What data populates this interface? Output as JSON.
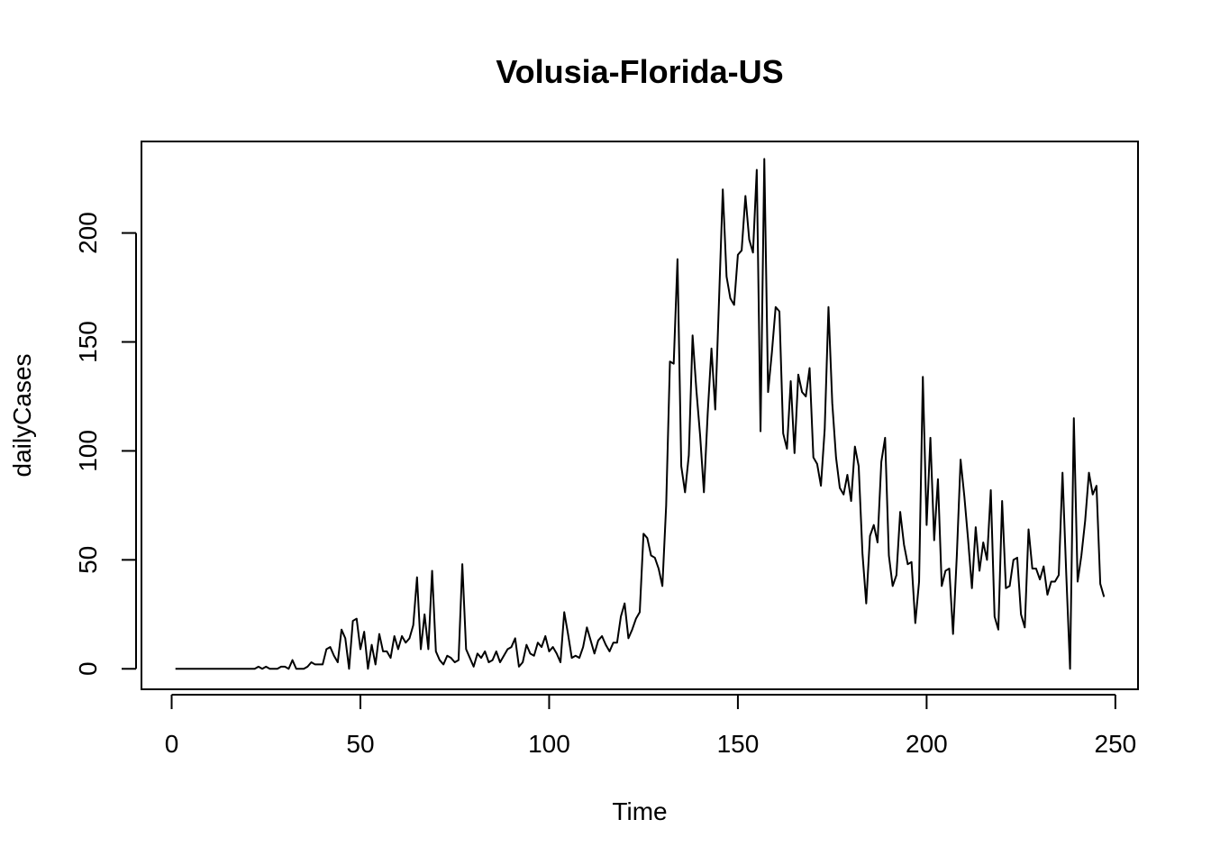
{
  "chart_data": {
    "type": "line",
    "title": "Volusia-Florida-US",
    "xlabel": "Time",
    "ylabel": "dailyCases",
    "xlim": [
      -8,
      256
    ],
    "ylim": [
      -9.4,
      242
    ],
    "x_ticks": [
      0,
      50,
      100,
      150,
      200,
      250
    ],
    "y_ticks": [
      0,
      50,
      100,
      150,
      200
    ],
    "x_tick_labels": [
      "0",
      "50",
      "100",
      "150",
      "200",
      "250"
    ],
    "y_tick_labels": [
      "0",
      "50",
      "100",
      "150",
      "200"
    ],
    "grid": false,
    "legend": "none",
    "line_color": "#000000",
    "series": [
      {
        "x_start": 1,
        "values": [
          0,
          0,
          0,
          0,
          0,
          0,
          0,
          0,
          0,
          0,
          0,
          0,
          0,
          0,
          0,
          0,
          0,
          0,
          0,
          0,
          0,
          0,
          1,
          0,
          1,
          0,
          0,
          0,
          1,
          1,
          0,
          4,
          0,
          0,
          0,
          1,
          3,
          2,
          2,
          2,
          9,
          10,
          6,
          3,
          18,
          14,
          0,
          22,
          23,
          9,
          17,
          0,
          11,
          2,
          16,
          8,
          8,
          5,
          15,
          9,
          15,
          12,
          14,
          20,
          42,
          9,
          25,
          9,
          45,
          8,
          4,
          2,
          6,
          5,
          3,
          4,
          48,
          9,
          5,
          1,
          7,
          5,
          8,
          3,
          4,
          8,
          3,
          6,
          9,
          10,
          14,
          1,
          3,
          11,
          7,
          6,
          12,
          10,
          15,
          8,
          10,
          7,
          3,
          26,
          16,
          5,
          6,
          5,
          10,
          19,
          13,
          7,
          13,
          15,
          11,
          8,
          12,
          12,
          24,
          30,
          14,
          18,
          23,
          26,
          62,
          60,
          52,
          51,
          46,
          38,
          75,
          141,
          140,
          188,
          93,
          81,
          98,
          153,
          128,
          107,
          81,
          117,
          147,
          119,
          169,
          220,
          180,
          170,
          167,
          190,
          192,
          217,
          197,
          191,
          229,
          109,
          234,
          127,
          145,
          166,
          164,
          108,
          101,
          132,
          99,
          135,
          127,
          125,
          138,
          97,
          94,
          84,
          110,
          166,
          122,
          97,
          83,
          80,
          89,
          77,
          102,
          93,
          53,
          30,
          61,
          66,
          58,
          95,
          106,
          52,
          38,
          43,
          72,
          57,
          48,
          49,
          21,
          40,
          134,
          66,
          106,
          59,
          87,
          38,
          45,
          46,
          16,
          52,
          96,
          79,
          59,
          37,
          65,
          45,
          58,
          50,
          82,
          24,
          18,
          77,
          37,
          38,
          50,
          51,
          25,
          19,
          64,
          46,
          46,
          41,
          47,
          34,
          40,
          40,
          43,
          90,
          43,
          0,
          115,
          40,
          52,
          68,
          90,
          80,
          84,
          39,
          33
        ]
      }
    ]
  }
}
